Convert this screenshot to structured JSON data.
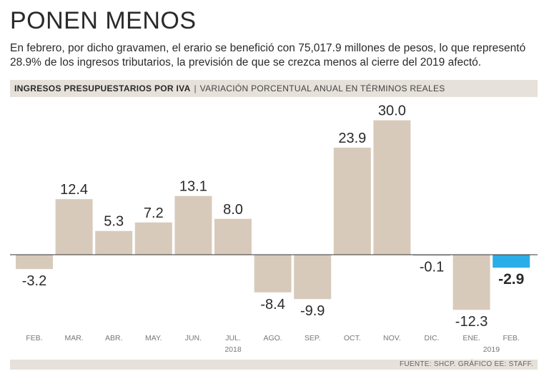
{
  "header": {
    "title": "PONEN MENOS",
    "subtitle": "En febrero, por dicho gravamen, el erario se benefició con 75,017.9 millones de pesos, lo que representó 28.9% de los ingresos tributarios, la previsión de que se crezca menos al cierre del 2019 afectó."
  },
  "chart_header": {
    "title": "INGRESOS PRESUPUESTARIOS POR IVA",
    "separator": "|",
    "subtitle": "VARIACIÓN PORCENTUAL ANUAL EN TÉRMINOS REALES"
  },
  "colors": {
    "bar": "#d8cabb",
    "highlight": "#2aaee8",
    "baseline": "#333333",
    "band": "#e6e1da"
  },
  "chart_data": {
    "type": "bar",
    "title": "INGRESOS PRESUPUESTARIOS POR IVA",
    "subtitle": "VARIACIÓN PORCENTUAL ANUAL EN TÉRMINOS REALES",
    "categories": [
      "FEB.",
      "MAR.",
      "ABR.",
      "MAY.",
      "JUN.",
      "JUL.",
      "AGO.",
      "SEP.",
      "OCT.",
      "NOV.",
      "DIC.",
      "ENE.",
      "FEB."
    ],
    "values": [
      -3.2,
      12.4,
      5.3,
      7.2,
      13.1,
      8.0,
      -8.4,
      -9.9,
      23.9,
      30.0,
      -0.1,
      -12.3,
      -2.9
    ],
    "value_labels": [
      "-3.2",
      "12.4",
      "5.3",
      "7.2",
      "13.1",
      "8.0",
      "-8.4",
      "-9.9",
      "23.9",
      "30.0",
      "-0.1",
      "-12.3",
      "-2.9"
    ],
    "highlight_index": 12,
    "year_labels": [
      {
        "text": "2018",
        "category_index": 5
      },
      {
        "text": "2019",
        "category_index": 11.5
      }
    ],
    "ylim": [
      -13,
      30
    ],
    "xlabel": "",
    "ylabel": "",
    "grid": false,
    "legend": "none"
  },
  "source": "FUENTE: SHCP. GRÁFICO EE: STAFF."
}
